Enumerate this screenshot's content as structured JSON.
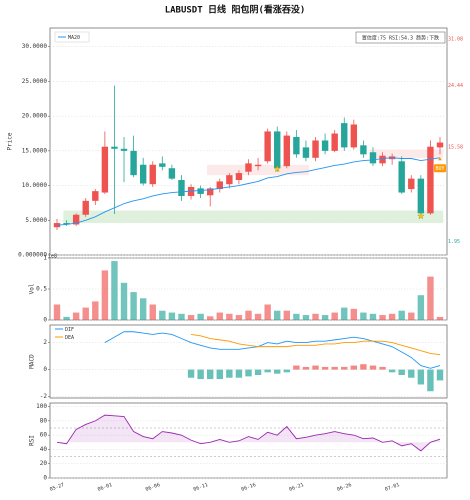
{
  "chart_data": {
    "type": "candlestick",
    "title": "LABUSDT  日线  阳包阴(看涨吞没)",
    "categories": [
      "05-27",
      null,
      null,
      null,
      null,
      "06-01",
      null,
      null,
      null,
      null,
      "06-06",
      null,
      null,
      null,
      null,
      "06-11",
      null,
      null,
      null,
      null,
      "06-16",
      null,
      null,
      null,
      null,
      "06-21",
      null,
      null,
      null,
      null,
      "06-26",
      null,
      null,
      null,
      null,
      "07-01",
      null,
      null,
      null,
      null,
      null
    ],
    "up_color": "#ef5350",
    "down_color": "#26a69a",
    "price": {
      "ylabel": "Price",
      "ylim": [
        0,
        32.7
      ],
      "yticks": [
        {
          "value": 0,
          "label": "0.000000"
        },
        {
          "value": 5,
          "label": "5.0000"
        },
        {
          "value": 10,
          "label": "10.0000"
        },
        {
          "value": 15,
          "label": "15.0000"
        },
        {
          "value": 20,
          "label": "20.0000"
        },
        {
          "value": 25,
          "label": "25.0000"
        },
        {
          "value": 30,
          "label": "30.0000"
        }
      ],
      "open": [
        4.0,
        4.6,
        4.4,
        5.8,
        7.8,
        9.0,
        15.6,
        15.3,
        15.0,
        13.0,
        10.2,
        13.2,
        12.5,
        10.8,
        8.5,
        9.6,
        8.6,
        9.5,
        10.2,
        10.8,
        12.0,
        12.8,
        13.5,
        17.8,
        12.8,
        17.0,
        15.5,
        14.0,
        16.5,
        15.0,
        19.0,
        15.5,
        15.8,
        14.8,
        13.2,
        13.8,
        13.5,
        9.5,
        11.0,
        6.0,
        15.5
      ],
      "high": [
        5.2,
        5.0,
        6.0,
        8.2,
        9.5,
        17.8,
        24.4,
        17.0,
        17.2,
        14.0,
        13.5,
        14.2,
        13.0,
        11.5,
        10.2,
        10.0,
        9.8,
        11.0,
        11.8,
        12.2,
        13.8,
        14.0,
        18.2,
        18.5,
        17.8,
        18.0,
        16.5,
        17.0,
        17.5,
        18.0,
        19.8,
        19.5,
        16.5,
        15.5,
        14.8,
        14.6,
        14.2,
        11.5,
        11.5,
        16.5,
        17.0
      ],
      "low": [
        3.6,
        4.2,
        4.2,
        5.5,
        7.2,
        8.8,
        5.9,
        10.5,
        11.2,
        10.0,
        9.8,
        12.2,
        10.8,
        7.8,
        8.0,
        8.2,
        7.0,
        9.0,
        9.6,
        10.2,
        11.5,
        12.2,
        13.2,
        12.0,
        12.5,
        14.0,
        13.5,
        13.5,
        14.5,
        14.8,
        15.0,
        15.2,
        14.0,
        12.8,
        12.8,
        13.0,
        8.8,
        9.0,
        5.5,
        5.8,
        14.5
      ],
      "close": [
        4.6,
        4.4,
        5.8,
        7.8,
        9.2,
        15.6,
        15.3,
        15.0,
        11.5,
        10.3,
        13.0,
        12.7,
        11.0,
        8.5,
        9.8,
        8.8,
        9.6,
        10.6,
        11.5,
        11.8,
        13.2,
        13.0,
        17.8,
        12.5,
        17.2,
        14.5,
        14.0,
        16.5,
        15.0,
        17.5,
        15.5,
        18.8,
        14.5,
        13.2,
        14.3,
        14.2,
        9.0,
        11.0,
        6.0,
        15.6,
        16.2
      ],
      "ma": {
        "name": "MA20",
        "color": "#2196f3",
        "values": [
          4.3,
          4.4,
          4.6,
          5.0,
          5.5,
          6.2,
          6.8,
          7.4,
          7.8,
          8.1,
          8.5,
          8.8,
          9.0,
          9.1,
          9.2,
          9.3,
          9.4,
          9.6,
          9.8,
          10.0,
          10.3,
          10.6,
          11.1,
          11.3,
          11.7,
          11.9,
          12.0,
          12.3,
          12.6,
          12.9,
          13.1,
          13.4,
          13.6,
          13.7,
          13.9,
          14.0,
          13.9,
          13.9,
          13.6,
          13.8,
          14.0
        ]
      },
      "zones": [
        {
          "low": 4.6,
          "high": 6.4,
          "from": 1,
          "to": 40,
          "color": "#d7ecd5"
        },
        {
          "low": 11.5,
          "high": 13.0,
          "from": 16,
          "to": 26,
          "color": "#fbe3e3"
        },
        {
          "low": 14.0,
          "high": 15.2,
          "from": 33,
          "to": 40,
          "color": "#fbe3e3"
        }
      ],
      "levels": [
        {
          "value": 31.08,
          "color": "#ef5350"
        },
        {
          "value": 24.44,
          "color": "#ef5350"
        },
        {
          "value": 15.58,
          "color": "#ef5350"
        },
        {
          "value": 1.95,
          "color": "#26a69a"
        }
      ],
      "stars": [
        {
          "index": 23,
          "value": 12.4
        },
        {
          "index": 38,
          "value": 5.6
        }
      ],
      "signal": {
        "label": "BUY",
        "index": 40,
        "value": 12.5,
        "color": "#ff9800"
      },
      "info": "置信度:75  RSI:54.3  趋势:下跌"
    },
    "volume": {
      "ylabel": "Vol",
      "offset": "1e8",
      "ylim": [
        0,
        1
      ],
      "yticks": [
        0,
        0.5,
        1
      ],
      "values": [
        0.25,
        0.05,
        0.12,
        0.2,
        0.3,
        0.8,
        0.95,
        0.6,
        0.45,
        0.35,
        0.25,
        0.15,
        0.12,
        0.1,
        0.08,
        0.1,
        0.06,
        0.12,
        0.1,
        0.08,
        0.15,
        0.1,
        0.25,
        0.15,
        0.15,
        0.1,
        0.08,
        0.1,
        0.08,
        0.12,
        0.2,
        0.18,
        0.12,
        0.1,
        0.08,
        0.1,
        0.15,
        0.12,
        0.4,
        0.7,
        0.05
      ]
    },
    "macd": {
      "ylabel": "MACD",
      "ylim": [
        -2.1,
        3.3
      ],
      "yticks": [
        -2,
        0,
        2
      ],
      "series": [
        {
          "name": "DIF",
          "color": "#2196f3",
          "values": [
            null,
            null,
            null,
            null,
            null,
            2.0,
            2.4,
            2.8,
            2.8,
            2.7,
            2.6,
            2.7,
            2.6,
            2.3,
            2.0,
            1.8,
            1.6,
            1.5,
            1.5,
            1.5,
            1.6,
            1.7,
            2.0,
            1.9,
            2.1,
            2.0,
            2.0,
            2.1,
            2.1,
            2.2,
            2.3,
            2.4,
            2.3,
            2.1,
            1.9,
            1.7,
            1.3,
            0.9,
            0.3,
            0.1,
            0.3
          ]
        },
        {
          "name": "DEA",
          "color": "#ff9800",
          "values": [
            null,
            null,
            null,
            null,
            null,
            null,
            null,
            null,
            null,
            null,
            null,
            null,
            null,
            null,
            2.6,
            2.5,
            2.3,
            2.2,
            2.1,
            1.9,
            1.8,
            1.7,
            1.7,
            1.7,
            1.7,
            1.8,
            1.8,
            1.8,
            1.9,
            1.9,
            2.0,
            2.0,
            2.1,
            2.1,
            2.1,
            2.0,
            1.8,
            1.6,
            1.4,
            1.2,
            1.1
          ]
        }
      ],
      "hist": [
        null,
        null,
        null,
        null,
        null,
        null,
        null,
        null,
        null,
        null,
        null,
        null,
        null,
        null,
        -0.6,
        -0.7,
        -0.7,
        -0.7,
        -0.6,
        -0.6,
        -0.5,
        -0.4,
        -0.2,
        -0.3,
        -0.2,
        0.3,
        0.2,
        0.3,
        0.2,
        0.2,
        0.2,
        0.3,
        0.4,
        0.3,
        0.2,
        -0.2,
        -0.4,
        -0.6,
        -1.1,
        -1.6,
        -0.8
      ]
    },
    "rsi": {
      "ylabel": "RSI",
      "ylim": [
        0,
        105
      ],
      "yticks": [
        0,
        20,
        40,
        60,
        80,
        100
      ],
      "color": "#9c27b0",
      "base": 50,
      "ref_lines": [
        70,
        30
      ],
      "values": [
        50,
        48,
        68,
        75,
        80,
        88,
        87,
        86,
        65,
        58,
        55,
        65,
        63,
        60,
        53,
        48,
        50,
        54,
        50,
        52,
        58,
        54,
        64,
        60,
        72,
        55,
        57,
        60,
        62,
        65,
        62,
        60,
        55,
        56,
        50,
        52,
        45,
        48,
        38,
        50,
        54.3
      ]
    }
  }
}
